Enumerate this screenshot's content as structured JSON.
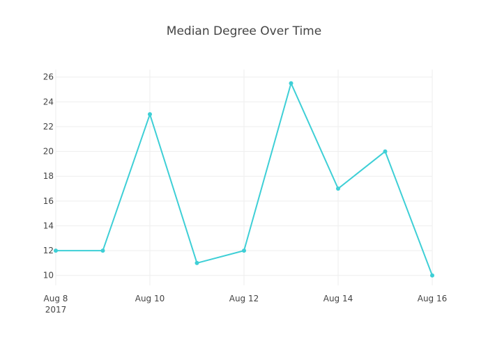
{
  "chart_data": {
    "type": "line",
    "title": "Median Degree Over Time",
    "xlabel": "",
    "ylabel": "",
    "x": [
      "2017-08-08",
      "2017-08-09",
      "2017-08-10",
      "2017-08-11",
      "2017-08-12",
      "2017-08-13",
      "2017-08-14",
      "2017-08-15",
      "2017-08-16"
    ],
    "series": [
      {
        "values": [
          12,
          12,
          23,
          11,
          12,
          25.5,
          17,
          20,
          10
        ],
        "color": "#3ecfd6"
      }
    ],
    "xlim": [
      "2017-08-08",
      "2017-08-16"
    ],
    "ylim": [
      9.2,
      26.6
    ],
    "x_ticks": [
      {
        "value": "2017-08-08",
        "label": "Aug 8",
        "sublabel": "2017"
      },
      {
        "value": "2017-08-10",
        "label": "Aug 10"
      },
      {
        "value": "2017-08-12",
        "label": "Aug 12"
      },
      {
        "value": "2017-08-14",
        "label": "Aug 14"
      },
      {
        "value": "2017-08-16",
        "label": "Aug 16"
      }
    ],
    "y_ticks": [
      10,
      12,
      14,
      16,
      18,
      20,
      22,
      24,
      26
    ],
    "grid": true,
    "legend": "none"
  }
}
